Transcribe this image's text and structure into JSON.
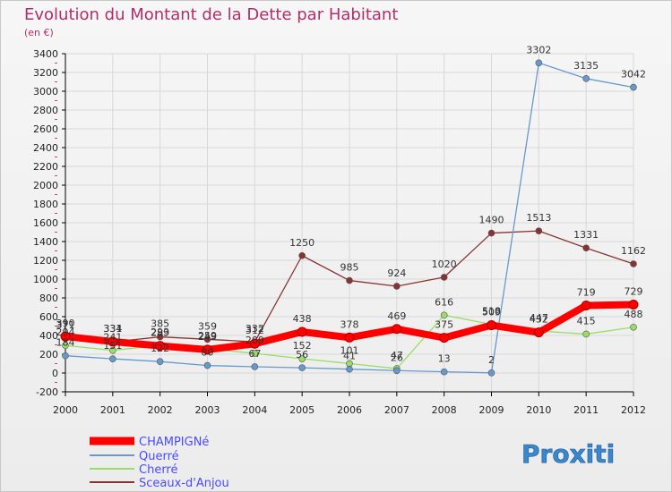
{
  "chart_data": {
    "type": "line",
    "title": "Evolution du Montant de la Dette par Habitant",
    "subtitle": "(en €)",
    "xlabel": "",
    "ylabel": "",
    "x": [
      "2000",
      "2001",
      "2002",
      "2003",
      "2004",
      "2005",
      "2006",
      "2007",
      "2008",
      "2009",
      "2010",
      "2011",
      "2012"
    ],
    "ylim": [
      -200,
      3400
    ],
    "yticks": [
      -200,
      0,
      200,
      400,
      600,
      800,
      1000,
      1200,
      1400,
      1600,
      1800,
      2000,
      2200,
      2400,
      2600,
      2800,
      3000,
      3200,
      3400
    ],
    "grid": true,
    "legend_position": "bottom-left",
    "series": [
      {
        "name": "CHAMPIGNé",
        "color": "#ff0000",
        "values": [
          390,
          334,
          289,
          249,
          312,
          438,
          378,
          469,
          375,
          509,
          432,
          719,
          729
        ]
      },
      {
        "name": "Querré",
        "color": "#6699cc",
        "values": [
          184,
          151,
          122,
          80,
          67,
          56,
          41,
          26,
          13,
          2,
          3302,
          3135,
          3042
        ]
      },
      {
        "name": "Cherré",
        "color": "#99dd66",
        "values": [
          294,
          241,
          293,
          259,
          209,
          152,
          101,
          47,
          616,
          518,
          447,
          415,
          488
        ]
      },
      {
        "name": "Sceaux-d'Anjou",
        "color": "#883333",
        "values": [
          371,
          331,
          385,
          359,
          332,
          1250,
          985,
          924,
          1020,
          1490,
          1513,
          1331,
          1162
        ]
      }
    ]
  },
  "logo_text": "Proxiti",
  "colors": {
    "title": "#b22d6b",
    "legend_text": "#4a4aff",
    "axis": "#000000",
    "grid": "#d8d8d8"
  }
}
